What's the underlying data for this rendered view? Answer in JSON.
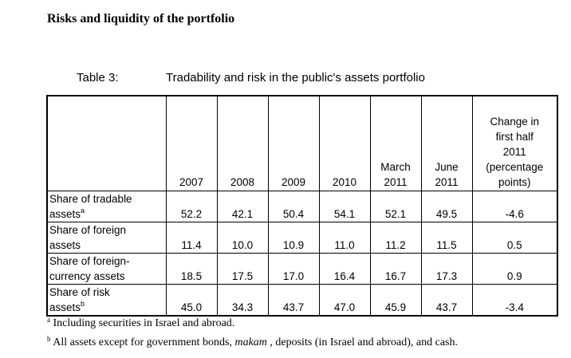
{
  "heading": "Risks and liquidity of the portfolio",
  "table_label": "Table 3:",
  "table_title": "Tradability and risk in the public's assets portfolio",
  "columns": [
    "2007",
    "2008",
    "2009",
    "2010",
    "March 2011",
    "June 2011",
    "Change in first half 2011 (percentage points)"
  ],
  "column_lines": [
    [
      "2007"
    ],
    [
      "2008"
    ],
    [
      "2009"
    ],
    [
      "2010"
    ],
    [
      "March",
      "2011"
    ],
    [
      "June",
      "2011"
    ],
    [
      "Change in",
      "first half",
      "2011",
      "(percentage",
      "points)"
    ]
  ],
  "rows": [
    {
      "label_line1": "Share of tradable",
      "label_line2": "assets",
      "footnote": "a",
      "values": [
        "52.2",
        "42.1",
        "50.4",
        "54.1",
        "52.1",
        "49.5",
        "-4.6"
      ]
    },
    {
      "label_line1": "Share of foreign",
      "label_line2": "assets",
      "footnote": "",
      "values": [
        "11.4",
        "10.0",
        "10.9",
        "11.0",
        "11.2",
        "11.5",
        "0.5"
      ]
    },
    {
      "label_line1": "Share of foreign-",
      "label_line2": "currency assets",
      "footnote": "",
      "values": [
        "18.5",
        "17.5",
        "17.0",
        "16.4",
        "16.7",
        "17.3",
        "0.9"
      ]
    },
    {
      "label_line1": "Share of risk",
      "label_line2": "assets",
      "footnote": "b",
      "values": [
        "45.0",
        "34.3",
        "43.7",
        "47.0",
        "45.9",
        "43.7",
        "-3.4"
      ]
    }
  ],
  "notes": {
    "a_marker": "a",
    "a_text": " Including securities in Israel and abroad.",
    "b_marker": "b",
    "b_text_before": " All assets except for government bonds, ",
    "b_text_italic": "makam",
    "b_text_after": " , deposits (in Israel and abroad), and cash."
  }
}
